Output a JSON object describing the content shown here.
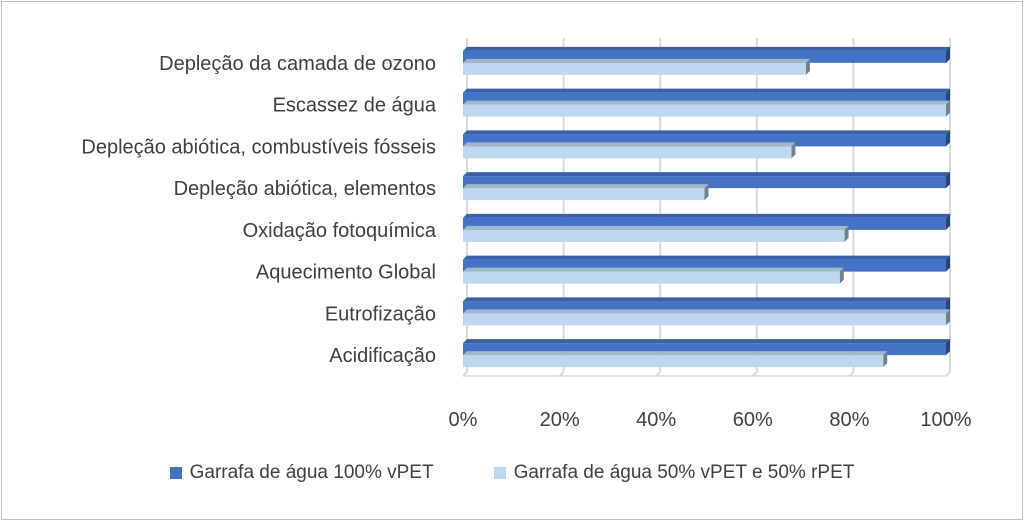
{
  "chart_data": {
    "type": "bar",
    "orientation": "horizontal",
    "categories": [
      "Depleção da camada de ozono",
      "Escassez de água",
      "Depleção abiótica, combustíveis fósseis",
      "Depleção abiótica, elementos",
      "Oxidação fotoquímica",
      "Aquecimento Global",
      "Eutrofização",
      "Acidificação"
    ],
    "series": [
      {
        "name": "Garrafa de água 100% vPET",
        "color": "#4472C4",
        "values": [
          100,
          100,
          100,
          100,
          100,
          100,
          100,
          100
        ]
      },
      {
        "name": "Garrafa de água 50% vPET e 50% rPET",
        "color": "#BDD7EE",
        "values": [
          71,
          100,
          68,
          50,
          79,
          78,
          100,
          87
        ]
      }
    ],
    "xticks": [
      "0%",
      "20%",
      "40%",
      "60%",
      "80%",
      "100%"
    ],
    "xlim": [
      0,
      100
    ],
    "grid": true,
    "legend_position": "bottom",
    "style": "3d"
  }
}
